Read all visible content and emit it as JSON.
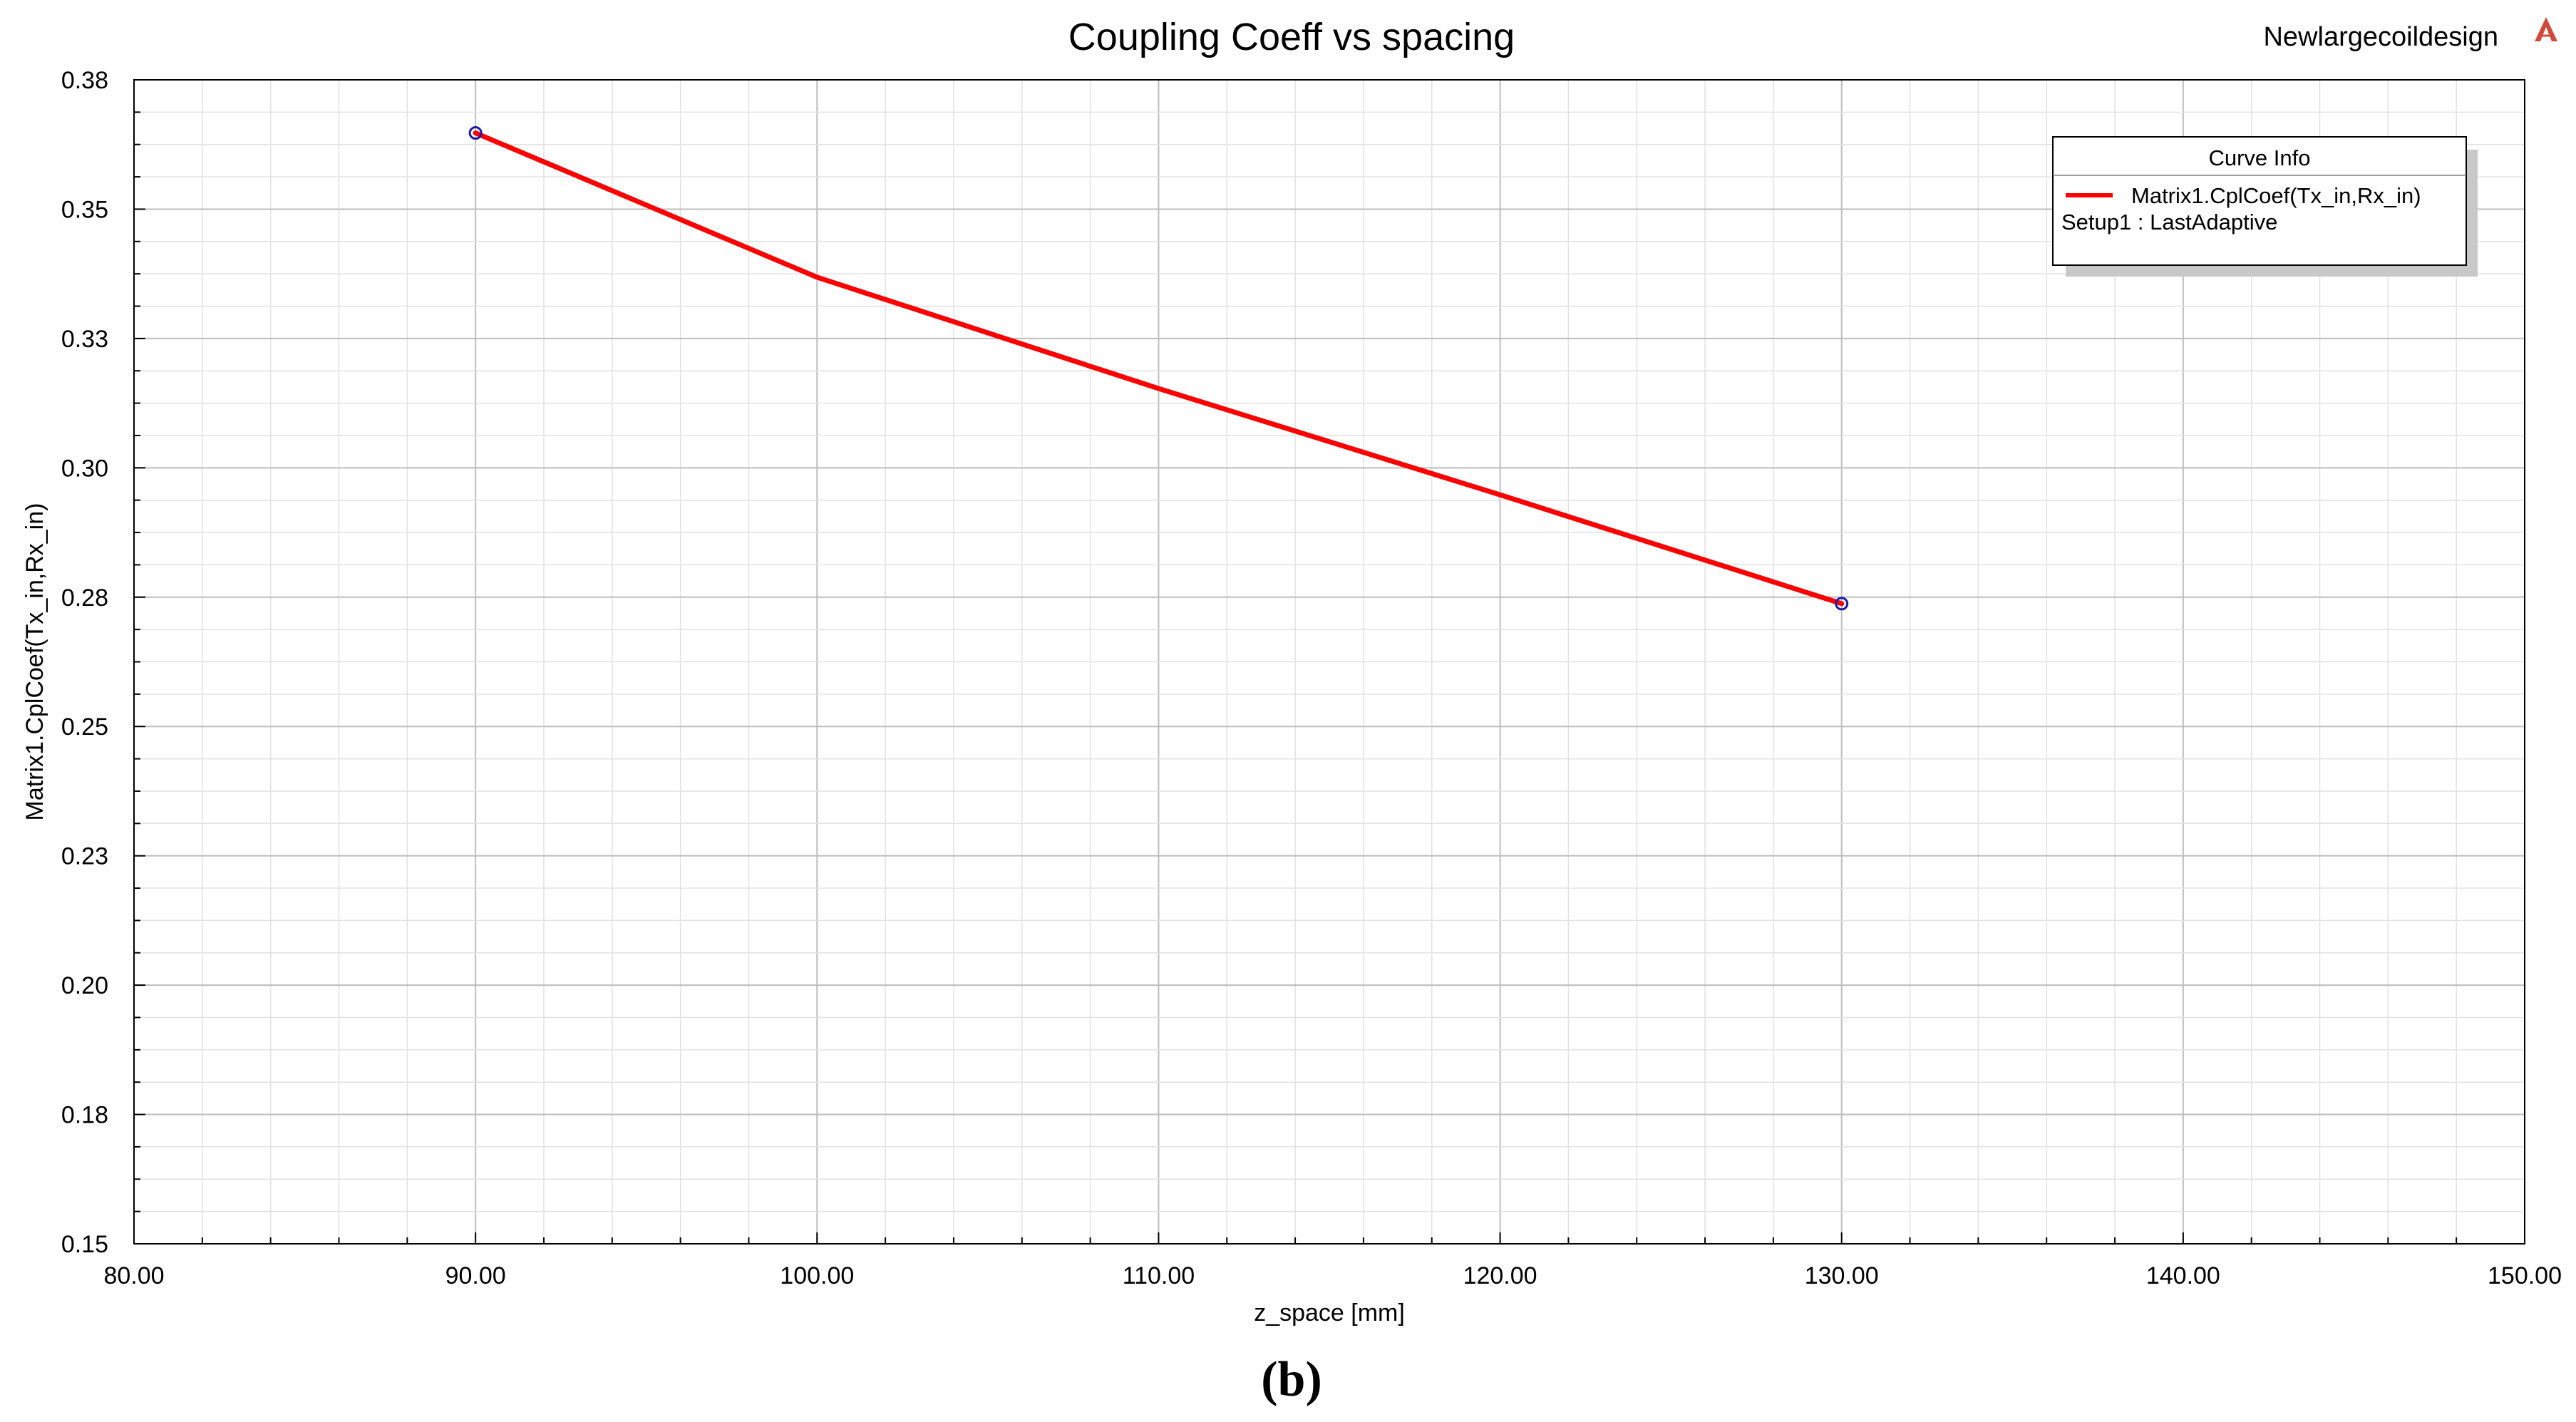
{
  "chart_data": {
    "type": "line",
    "title": "Coupling Coeff vs spacing",
    "project_name": "Newlargecoildesign",
    "xlabel": "z_space [mm]",
    "ylabel": "Matrix1.CplCoef(Tx_in,Rx_in)",
    "xlim": [
      80,
      150
    ],
    "ylim": [
      0.15,
      0.38
    ],
    "x_ticks": [
      "80.00",
      "90.00",
      "100.00",
      "110.00",
      "120.00",
      "130.00",
      "140.00",
      "150.00"
    ],
    "y_ticks": [
      "0.15",
      "0.18",
      "0.20",
      "0.23",
      "0.25",
      "0.28",
      "0.30",
      "0.33",
      "0.35",
      "0.38"
    ],
    "grid": true,
    "legend": {
      "title": "Curve Info",
      "position": "top-right",
      "entries": [
        "Matrix1.CplCoef(Tx_in,Rx_in)",
        "Setup1 : LastAdaptive"
      ]
    },
    "series": [
      {
        "name": "Matrix1.CplCoef(Tx_in,Rx_in)",
        "color": "#ff0000",
        "marker_color": "#1a1aa8",
        "x": [
          90,
          100,
          110,
          120,
          130
        ],
        "y": [
          0.3695,
          0.341,
          0.319,
          0.298,
          0.2765
        ]
      }
    ]
  },
  "caption": "(b)"
}
